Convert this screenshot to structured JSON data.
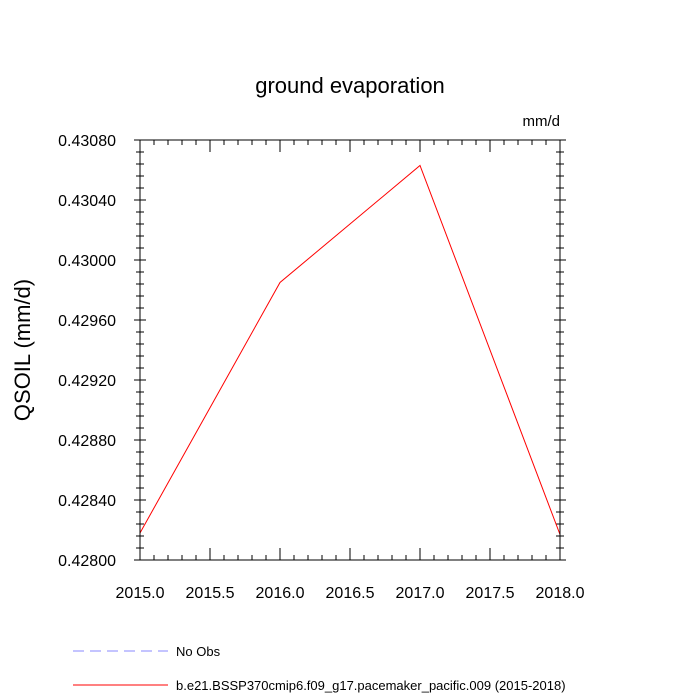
{
  "chart_data": {
    "type": "line",
    "title": "ground evaporation",
    "units_label": "mm/d",
    "xlabel": "",
    "ylabel": "QSOIL  (mm/d)",
    "xlim": [
      2015.0,
      2018.0
    ],
    "ylim": [
      0.428,
      0.4308
    ],
    "x_ticks": [
      "2015.0",
      "2015.5",
      "2016.0",
      "2016.5",
      "2017.0",
      "2017.5",
      "2018.0"
    ],
    "y_ticks": [
      "0.42800",
      "0.42840",
      "0.42880",
      "0.42920",
      "0.42960",
      "0.43000",
      "0.43040",
      "0.43080"
    ],
    "grid": false,
    "legend_placement": "bottom-left",
    "series": [
      {
        "name": "b.e21.BSSP370cmip6.f09_g17.pacemaker_pacific.009 (2015-2018)",
        "color": "#ff0000",
        "dash": "solid",
        "x": [
          2015,
          2016,
          2017,
          2018
        ],
        "y": [
          0.42818,
          0.42985,
          0.43063,
          0.42817
        ]
      }
    ],
    "legend": [
      {
        "label": "No Obs",
        "color": "#8a8aff",
        "dash": "dashed"
      },
      {
        "label": "b.e21.BSSP370cmip6.f09_g17.pacemaker_pacific.009 (2015-2018)",
        "color": "#ff0000",
        "dash": "solid"
      }
    ]
  }
}
